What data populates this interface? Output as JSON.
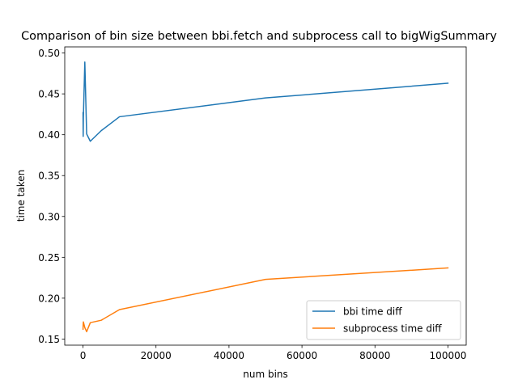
{
  "chart_data": {
    "type": "line",
    "title": "Comparison of bin size between bbi.fetch and subprocess call to bigWigSummary",
    "xlabel": "num bins",
    "ylabel": "time taken",
    "xlim": [
      -5000,
      105000
    ],
    "ylim": [
      0.1425,
      0.5075
    ],
    "xticks": [
      0,
      20000,
      40000,
      60000,
      80000,
      100000
    ],
    "xtick_labels": [
      "0",
      "20000",
      "40000",
      "60000",
      "80000",
      "100000"
    ],
    "yticks": [
      0.15,
      0.2,
      0.25,
      0.3,
      0.35,
      0.4,
      0.45,
      0.5
    ],
    "ytick_labels": [
      "0.15",
      "0.20",
      "0.25",
      "0.30",
      "0.35",
      "0.40",
      "0.45",
      "0.50"
    ],
    "grid": false,
    "legend_position": "lower right",
    "series": [
      {
        "name": "bbi time diff",
        "color": "#1f77b4",
        "x": [
          10,
          50,
          100,
          500,
          1000,
          2000,
          5000,
          10000,
          50000,
          100000
        ],
        "y": [
          0.427,
          0.398,
          0.421,
          0.489,
          0.401,
          0.392,
          0.405,
          0.422,
          0.445,
          0.463
        ]
      },
      {
        "name": "subprocess time diff",
        "color": "#ff7f0e",
        "x": [
          10,
          50,
          100,
          500,
          1000,
          2000,
          5000,
          10000,
          50000,
          100000
        ],
        "y": [
          0.162,
          0.168,
          0.171,
          0.164,
          0.159,
          0.17,
          0.173,
          0.186,
          0.223,
          0.237
        ]
      }
    ]
  }
}
